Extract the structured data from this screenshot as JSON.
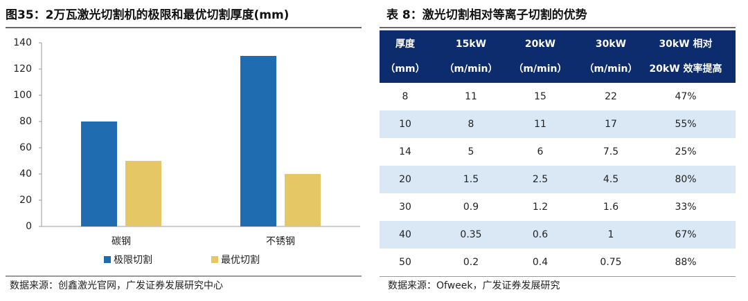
{
  "chart_data": {
    "type": "bar",
    "title": "图35：2万瓦激光切割机的极限和最优切割厚度(mm)",
    "categories": [
      "碳钢",
      "不锈钢"
    ],
    "series": [
      {
        "name": "极限切割",
        "color": "#1f6db0",
        "values": [
          80,
          130
        ]
      },
      {
        "name": "最优切割",
        "color": "#e6c766",
        "values": [
          50,
          40
        ]
      }
    ],
    "ylim": [
      0,
      140
    ],
    "yticks": [
      0,
      20,
      40,
      60,
      80,
      100,
      120,
      140
    ],
    "grid": false,
    "legend": "bottom",
    "source": "数据来源：创鑫激光官网，广发证券发展研究中心"
  },
  "table": {
    "title": "表 8：激光切割相对等离子切割的优势",
    "header": [
      [
        "厚度",
        "15kW",
        "20kW",
        "30kW",
        "30kW 相对"
      ],
      [
        "（mm）",
        "（m/min）",
        "（m/min）",
        "（m/min）",
        "20kW 效率提高"
      ]
    ],
    "rows": [
      [
        8,
        11,
        15,
        22,
        "47%"
      ],
      [
        10,
        8,
        11,
        17,
        "55%"
      ],
      [
        14,
        5,
        6,
        7.5,
        "25%"
      ],
      [
        20,
        1.5,
        2.5,
        4.5,
        "80%"
      ],
      [
        30,
        0.9,
        1.2,
        1.6,
        "33%"
      ],
      [
        40,
        0.35,
        0.6,
        1,
        "67%"
      ],
      [
        50,
        0.2,
        0.4,
        0.75,
        "88%"
      ]
    ],
    "source": "数据来源：Ofweek，广发证券发展研究"
  }
}
